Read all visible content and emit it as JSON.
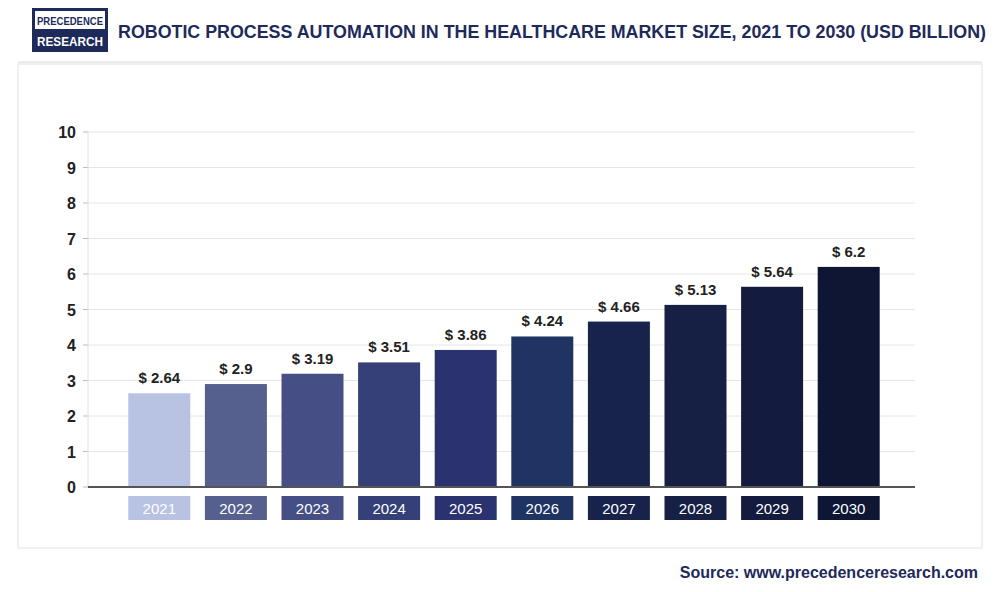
{
  "chart_data": {
    "type": "bar",
    "title": "ROBOTIC PROCESS AUTOMATION IN THE HEALTHCARE MARKET SIZE, 2021 TO 2030 (USD BILLION)",
    "logo_text": [
      "PRECEDENCE",
      "RESEARCH"
    ],
    "source": "Source: www.precedenceresearch.com",
    "categories": [
      "2021",
      "2022",
      "2023",
      "2024",
      "2025",
      "2026",
      "2027",
      "2028",
      "2029",
      "2030"
    ],
    "values": [
      2.64,
      2.9,
      3.19,
      3.51,
      3.86,
      4.24,
      4.66,
      5.13,
      5.64,
      6.2
    ],
    "value_labels": [
      "$ 2.64",
      "$ 2.9",
      "$ 3.19",
      "$ 3.51",
      "$ 3.86",
      "$ 4.24",
      "$ 4.66",
      "$ 5.13",
      "$ 5.64",
      "$ 6.2"
    ],
    "colors": [
      "#b8c2e2",
      "#56608f",
      "#454f86",
      "#353f78",
      "#2a3270",
      "#1f3462",
      "#18234b",
      "#152044",
      "#131b3f",
      "#0e1634"
    ],
    "ylim": [
      0,
      10
    ],
    "yticks": [
      0,
      1,
      2,
      3,
      4,
      5,
      6,
      7,
      8,
      9,
      10
    ],
    "grid": true,
    "data_labels": true
  }
}
